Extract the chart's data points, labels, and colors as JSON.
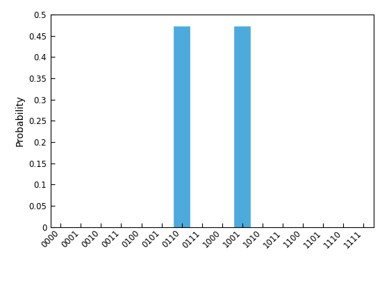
{
  "categories": [
    "0000",
    "0001",
    "0010",
    "0011",
    "0100",
    "0101",
    "0110",
    "0111",
    "1000",
    "1001",
    "1010",
    "1011",
    "1100",
    "1101",
    "1110",
    "1111"
  ],
  "values": [
    0.0,
    0.0,
    0.0,
    0.0,
    0.0,
    0.0,
    0.4722,
    0.0,
    0.0,
    0.4722,
    0.0,
    0.0,
    0.0,
    0.0,
    0.0,
    0.0
  ],
  "bar_color": "#4DAADC",
  "bar_edge_color": "#4DAADC",
  "ylabel": "Probability",
  "ylim": [
    0,
    0.5
  ],
  "yticks": [
    0,
    0.05,
    0.1,
    0.15,
    0.2,
    0.25,
    0.3,
    0.35,
    0.4,
    0.45,
    0.5
  ],
  "tick_fontsize": 8.5,
  "label_fontsize": 10,
  "figsize": [
    5.6,
    4.2
  ],
  "dpi": 100,
  "bar_width": 0.8,
  "bg_color": "#FFFFFF",
  "axes_color": "#FFFFFF"
}
